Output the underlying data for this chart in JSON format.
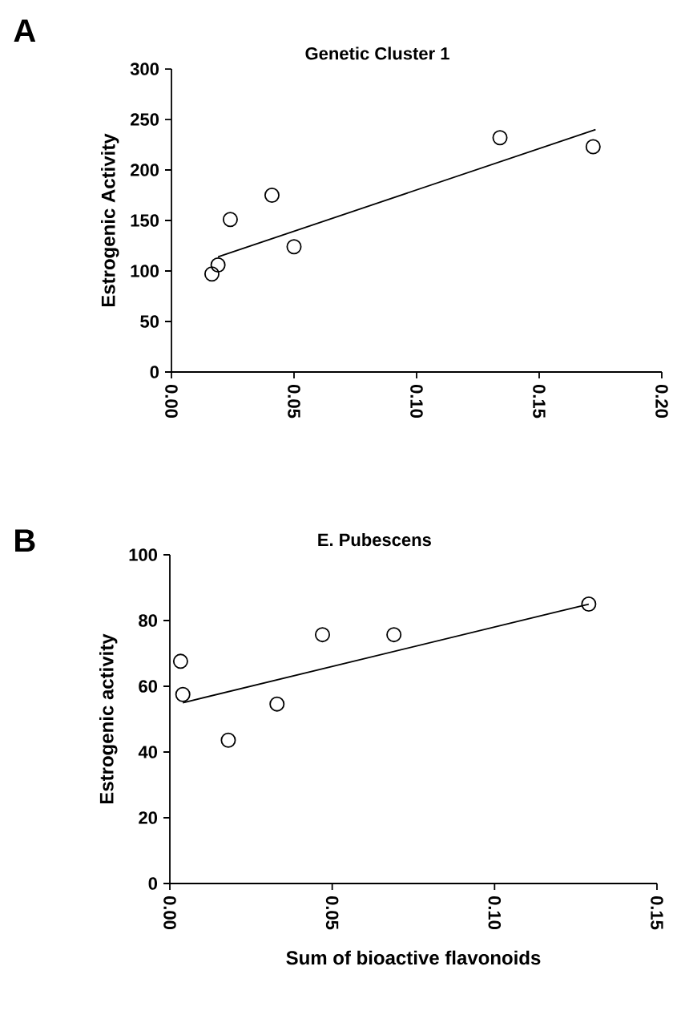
{
  "chart_data": [
    {
      "type": "scatter",
      "title": "Genetic Cluster 1",
      "ylabel": "Estrogenic Activity",
      "annotations": [
        "A"
      ],
      "xlim": [
        0,
        0.2
      ],
      "xticks": [
        {
          "value": 0,
          "label": "0.00"
        },
        {
          "value": 0.05,
          "label": "0.05"
        },
        {
          "value": 0.1,
          "label": "0.10"
        },
        {
          "value": 0.15,
          "label": "0.15"
        },
        {
          "value": 0.2,
          "label": "0.20"
        }
      ],
      "ylim": [
        0,
        300
      ],
      "yticks": [
        0,
        50,
        100,
        150,
        200,
        250,
        300
      ],
      "series": [
        {
          "type": "line",
          "color": "#000000",
          "line_style": "solid",
          "x": [
            0.019,
            0.173
          ],
          "values": [
            114,
            240
          ]
        },
        {
          "type": "scatter",
          "color": "#000000",
          "marker": "circle",
          "x": [
            0.0165,
            0.019,
            0.024,
            0.041,
            0.05,
            0.134,
            0.172
          ],
          "values": [
            97,
            106,
            151,
            175,
            124,
            232,
            223
          ]
        }
      ]
    },
    {
      "type": "scatter",
      "title": "E. Pubescens",
      "ylabel": "Estrogenic activity",
      "xlabel": "Sum of bioactive flavonoids",
      "annotations": [
        "B"
      ],
      "xlim": [
        0,
        0.15
      ],
      "xticks": [
        {
          "value": 0,
          "label": "0.00"
        },
        {
          "value": 0.05,
          "label": "0.05"
        },
        {
          "value": 0.1,
          "label": "0.10"
        },
        {
          "value": 0.15,
          "label": "0.15"
        }
      ],
      "ylim": [
        0,
        100
      ],
      "yticks": [
        0,
        20,
        40,
        60,
        80,
        100
      ],
      "series": [
        {
          "type": "line",
          "color": "#000000",
          "line_style": "solid",
          "x": [
            0.004,
            0.129
          ],
          "values": [
            55,
            85
          ]
        },
        {
          "type": "scatter",
          "color": "#000000",
          "marker": "circle",
          "x": [
            0.0033,
            0.004,
            0.018,
            0.033,
            0.047,
            0.069,
            0.129
          ],
          "values": [
            67.6,
            57.5,
            43.6,
            54.6,
            75.7,
            75.7,
            85
          ]
        }
      ]
    }
  ]
}
